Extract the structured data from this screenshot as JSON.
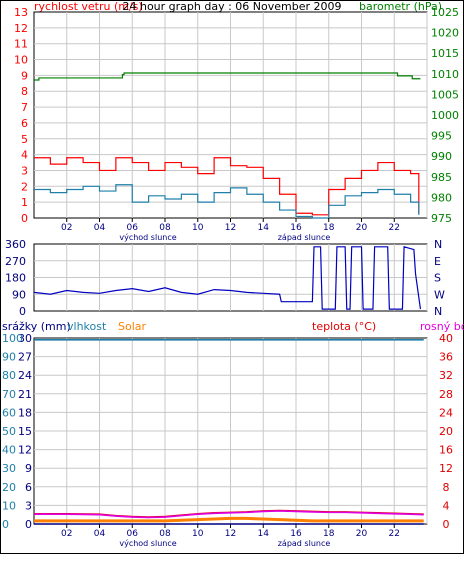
{
  "chart_data": [
    {
      "type": "line",
      "title": "24 hour graph day : 06 November 2009",
      "left_axis_label": "rychlost vetru (m/s)",
      "right_axis_label": "barometr (hPa)",
      "ylim_left": [
        0,
        13
      ],
      "ylim_right": [
        975,
        1025
      ],
      "left_ticks": [
        0,
        1,
        2,
        3,
        4,
        5,
        6,
        7,
        8,
        9,
        10,
        11,
        12,
        13
      ],
      "right_ticks": [
        975,
        980,
        985,
        990,
        995,
        1000,
        1005,
        1010,
        1015,
        1020,
        1025
      ],
      "xlim": [
        0,
        24
      ],
      "x_ticks": [
        "02",
        "04",
        "06",
        "08",
        "10",
        "12",
        "14",
        "16",
        "18",
        "20",
        "22"
      ],
      "x_annotations": [
        "východ slunce",
        "západ slunce"
      ],
      "grid": true,
      "colors": {
        "gust": "#ff0000",
        "average": "#1f7fa8",
        "pressure": "#008000",
        "title": "#ffffff"
      },
      "series": [
        {
          "role": "pressure",
          "axis": "right",
          "x": [
            0,
            0.3,
            3.8,
            5.4,
            5.5,
            22.1,
            22.2,
            23.0,
            23.1,
            23.6
          ],
          "y": [
            1008.5,
            1009.0,
            1009.0,
            1009.8,
            1010.2,
            1010.2,
            1009.5,
            1009.5,
            1008.8,
            1008.8
          ]
        },
        {
          "role": "gust",
          "axis": "left",
          "x": [
            0,
            1,
            2,
            3,
            4,
            5,
            6,
            7,
            8,
            9,
            10,
            11,
            12,
            13,
            14,
            15,
            16,
            17,
            18,
            19,
            20,
            21,
            22,
            23,
            23.5
          ],
          "y": [
            3.8,
            3.4,
            3.8,
            3.5,
            3.0,
            3.8,
            3.5,
            3.0,
            3.5,
            3.2,
            2.8,
            3.8,
            3.3,
            3.2,
            2.5,
            1.5,
            0.3,
            0.2,
            1.8,
            2.5,
            3.0,
            3.5,
            3.0,
            2.8,
            0.3
          ]
        },
        {
          "role": "average",
          "axis": "left",
          "x": [
            0,
            1,
            2,
            3,
            4,
            5,
            6,
            7,
            8,
            9,
            10,
            11,
            12,
            13,
            14,
            15,
            16,
            17,
            18,
            19,
            20,
            21,
            22,
            23,
            23.5
          ],
          "y": [
            1.8,
            1.6,
            1.8,
            2.0,
            1.7,
            2.1,
            1.0,
            1.4,
            1.2,
            1.5,
            1.0,
            1.6,
            1.9,
            1.5,
            1.0,
            0.5,
            0.1,
            0.0,
            0.8,
            1.4,
            1.6,
            1.8,
            1.5,
            1.0,
            0.2
          ]
        }
      ]
    },
    {
      "type": "line",
      "left_ticks": [
        0,
        90,
        180,
        270,
        360
      ],
      "right_ticks": [
        "N",
        "W",
        "S",
        "E",
        "N"
      ],
      "ylim_left": [
        0,
        360
      ],
      "xlim": [
        0,
        24
      ],
      "grid": true,
      "colors": {
        "direction": "#0000c0"
      },
      "series": [
        {
          "role": "wind-direction",
          "x": [
            0,
            1,
            2,
            3,
            4,
            5,
            6,
            7,
            8,
            9,
            10,
            11,
            12,
            13,
            14,
            15,
            15.1,
            16,
            17,
            17.1,
            17.5,
            17.6,
            18.4,
            18.5,
            19.0,
            19.1,
            19.3,
            19.4,
            20.0,
            20.1,
            20.7,
            20.8,
            21.6,
            21.7,
            22.5,
            22.6,
            23.2,
            23.3,
            23.6
          ],
          "y": [
            100,
            90,
            110,
            100,
            95,
            110,
            120,
            105,
            125,
            100,
            90,
            115,
            110,
            100,
            95,
            90,
            50,
            50,
            50,
            345,
            345,
            10,
            10,
            345,
            345,
            10,
            10,
            345,
            345,
            10,
            10,
            345,
            345,
            10,
            10,
            345,
            330,
            200,
            10
          ]
        }
      ]
    },
    {
      "type": "line",
      "header_labels": [
        "srážky (mm)",
        "vlhkost",
        "Solar",
        "teplota (°C)",
        "rosný bod"
      ],
      "left_ticks_rain": [
        0,
        3,
        6,
        9,
        12,
        15,
        18,
        21,
        24,
        27,
        30
      ],
      "left_ticks_humidity": [
        0,
        10,
        20,
        30,
        40,
        50,
        60,
        70,
        80,
        90,
        100
      ],
      "right_ticks": [
        0,
        4,
        8,
        12,
        16,
        20,
        24,
        28,
        32,
        36,
        40
      ],
      "ylim_rain": [
        0,
        30
      ],
      "ylim_humidity": [
        0,
        100
      ],
      "ylim_temperature": [
        0,
        40
      ],
      "xlim": [
        0,
        24
      ],
      "x_ticks": [
        "02",
        "04",
        "06",
        "08",
        "10",
        "12",
        "14",
        "16",
        "18",
        "20",
        "22"
      ],
      "x_annotations": [
        "východ slunce",
        "západ slunce"
      ],
      "grid": true,
      "colors": {
        "rain": "#000080",
        "humidity": "#1f7fa8",
        "solar": "#ff8000",
        "temperature": "#e00000",
        "dewpoint": "#e000e0"
      },
      "series": [
        {
          "role": "humidity",
          "axis": "humidity",
          "x": [
            0,
            23.8
          ],
          "y": [
            99,
            99
          ]
        },
        {
          "role": "rain",
          "axis": "rain",
          "x": [
            0,
            23.8
          ],
          "y": [
            0,
            0
          ]
        },
        {
          "role": "temperature",
          "axis": "temperature",
          "x": [
            0,
            2,
            4,
            5,
            6,
            7,
            8,
            9,
            10,
            11,
            12,
            13,
            14,
            15,
            16,
            17,
            18,
            19,
            20,
            21,
            22,
            23,
            23.8
          ],
          "y": [
            2.2,
            2.2,
            2.1,
            1.8,
            1.6,
            1.5,
            1.6,
            1.9,
            2.2,
            2.4,
            2.5,
            2.6,
            2.8,
            2.9,
            2.8,
            2.7,
            2.6,
            2.6,
            2.5,
            2.4,
            2.3,
            2.2,
            2.1
          ]
        },
        {
          "role": "dewpoint",
          "axis": "temperature",
          "x": [
            0,
            2,
            4,
            5,
            6,
            7,
            8,
            9,
            10,
            11,
            12,
            13,
            14,
            15,
            16,
            17,
            18,
            19,
            20,
            21,
            22,
            23,
            23.8
          ],
          "y": [
            2.1,
            2.1,
            2.0,
            1.7,
            1.5,
            1.4,
            1.5,
            1.8,
            2.1,
            2.3,
            2.4,
            2.5,
            2.7,
            2.8,
            2.7,
            2.6,
            2.5,
            2.5,
            2.4,
            2.3,
            2.2,
            2.1,
            2.0
          ]
        },
        {
          "role": "solar",
          "axis": "rain",
          "x": [
            0,
            8,
            9,
            10,
            11,
            12,
            13,
            14,
            15,
            16,
            17,
            18,
            23.8
          ],
          "y": [
            0.5,
            0.5,
            0.6,
            0.7,
            0.8,
            0.9,
            0.9,
            0.8,
            0.7,
            0.6,
            0.5,
            0.5,
            0.5
          ]
        }
      ]
    }
  ]
}
